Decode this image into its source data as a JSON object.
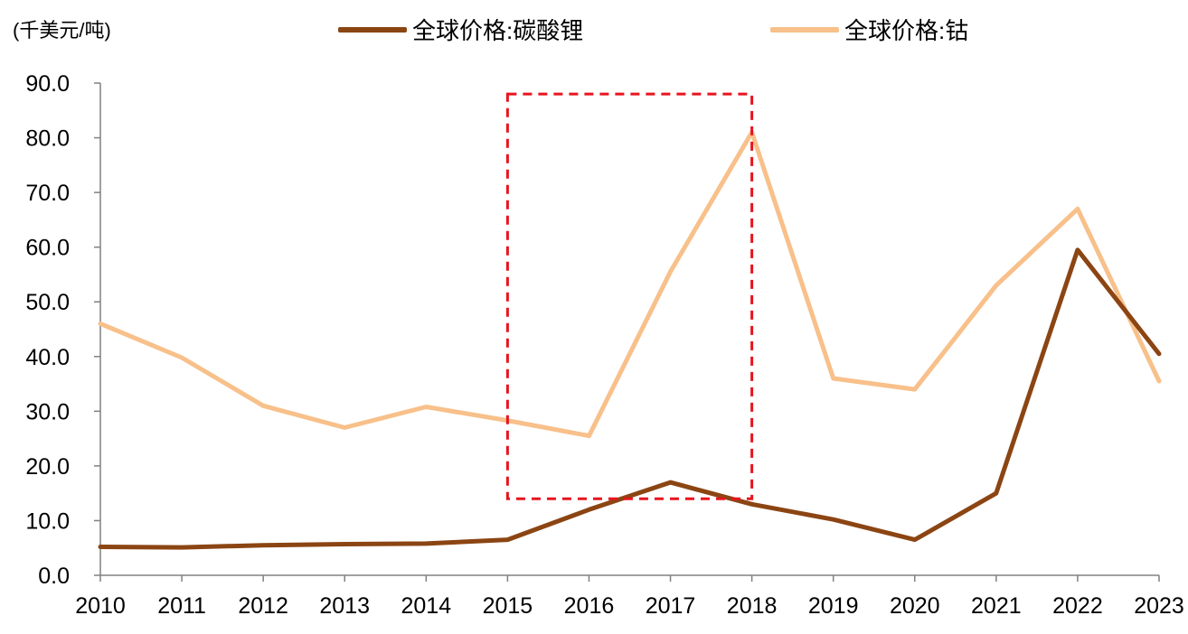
{
  "chart_data": {
    "type": "line",
    "unit_label": "(千美元/吨)",
    "categories": [
      "2010",
      "2011",
      "2012",
      "2013",
      "2014",
      "2015",
      "2016",
      "2017",
      "2018",
      "2019",
      "2020",
      "2021",
      "2022",
      "2023"
    ],
    "ylim": [
      0,
      90
    ],
    "yticks": [
      "0.0",
      "10.0",
      "20.0",
      "30.0",
      "40.0",
      "50.0",
      "60.0",
      "70.0",
      "80.0",
      "90.0"
    ],
    "series": [
      {
        "name": "全球价格:碳酸锂",
        "color": "#8B4513",
        "values": [
          5.2,
          5.1,
          5.5,
          5.7,
          5.8,
          6.5,
          12.0,
          17.0,
          13.0,
          10.2,
          6.5,
          15.0,
          59.5,
          40.5
        ]
      },
      {
        "name": "全球价格:钴",
        "color": "#F8C08A",
        "values": [
          46.0,
          39.8,
          31.0,
          27.0,
          30.8,
          28.3,
          25.5,
          55.5,
          81.0,
          36.0,
          34.0,
          53.0,
          67.0,
          35.5
        ]
      }
    ],
    "highlight_box": {
      "color": "#E8141E",
      "x_from": "2015",
      "x_to": "2018",
      "y_from": 14.0,
      "y_to": 88.0
    },
    "grid": false,
    "legend_position": "top"
  }
}
